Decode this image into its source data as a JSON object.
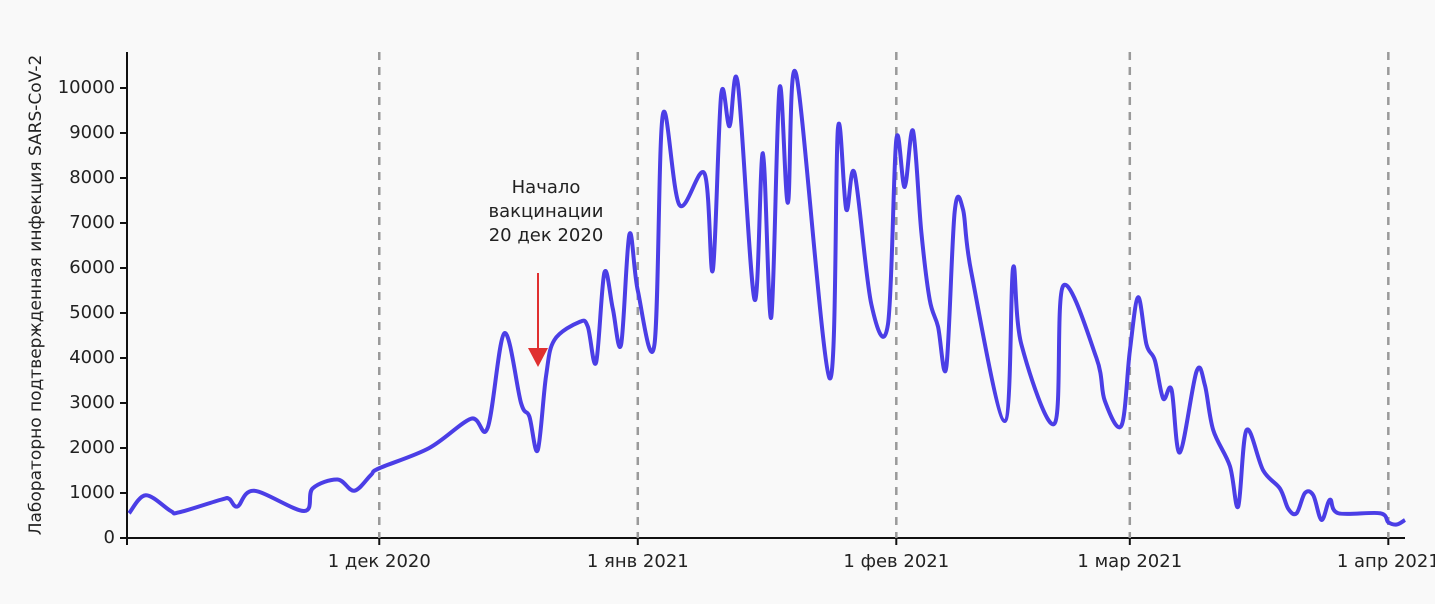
{
  "chart_data": {
    "type": "line",
    "ylabel": "Лабораторно подтвержденная инфекция SARS-CoV-2",
    "annotation": [
      "Начало",
      "вакцинации",
      "20 дек 2020"
    ],
    "xlim": [
      "2020-11-01",
      "2021-04-03"
    ],
    "ylim": [
      0,
      10800
    ],
    "yticks": [
      0,
      1000,
      2000,
      3000,
      4000,
      5000,
      6000,
      7000,
      8000,
      9000,
      10000
    ],
    "xticks": [
      {
        "value": "2020-12-01",
        "label": "1 дек 2020"
      },
      {
        "value": "2021-01-01",
        "label": "1 янв 2021"
      },
      {
        "value": "2021-02-01",
        "label": "1 фев 2021"
      },
      {
        "value": "2021-03-01",
        "label": "1 мар 2021"
      },
      {
        "value": "2021-04-01",
        "label": "1 апр 2021"
      }
    ],
    "grid": "x",
    "series": [
      {
        "color": "#4b3ee6",
        "x": [
          "2020-11-01",
          "2020-11-03",
          "2020-11-06",
          "2020-11-07",
          "2020-11-12",
          "2020-11-13",
          "2020-11-14",
          "2020-11-16",
          "2020-11-22",
          "2020-11-23",
          "2020-11-26",
          "2020-11-28",
          "2020-11-30",
          "2020-12-01",
          "2020-12-07",
          "2020-12-12",
          "2020-12-14",
          "2020-12-16",
          "2020-12-18",
          "2020-12-19",
          "2020-12-20",
          "2020-12-21",
          "2020-12-22",
          "2020-12-25",
          "2020-12-26",
          "2020-12-27",
          "2020-12-28",
          "2020-12-29",
          "2020-12-30",
          "2020-12-31",
          "2021-01-01",
          "2021-01-03",
          "2021-01-04",
          "2021-01-06",
          "2021-01-09",
          "2021-01-10",
          "2021-01-11",
          "2021-01-12",
          "2021-01-13",
          "2021-01-15",
          "2021-01-16",
          "2021-01-17",
          "2021-01-18",
          "2021-01-19",
          "2021-01-20",
          "2021-01-24",
          "2021-01-25",
          "2021-01-26",
          "2021-01-27",
          "2021-01-29",
          "2021-01-31",
          "2021-02-01",
          "2021-02-02",
          "2021-02-03",
          "2021-02-04",
          "2021-02-05",
          "2021-02-06",
          "2021-02-07",
          "2021-02-08",
          "2021-02-09",
          "2021-02-10",
          "2021-02-14",
          "2021-02-15",
          "2021-02-16",
          "2021-02-20",
          "2021-02-21",
          "2021-02-25",
          "2021-02-26",
          "2021-02-28",
          "2021-03-01",
          "2021-03-02",
          "2021-03-03",
          "2021-03-04",
          "2021-03-05",
          "2021-03-06",
          "2021-03-07",
          "2021-03-09",
          "2021-03-10",
          "2021-03-11",
          "2021-03-13",
          "2021-03-14",
          "2021-03-15",
          "2021-03-17",
          "2021-03-19",
          "2021-03-20",
          "2021-03-21",
          "2021-03-22",
          "2021-03-23",
          "2021-03-24",
          "2021-03-25",
          "2021-03-26",
          "2021-03-31",
          "2021-04-01",
          "2021-04-02",
          "2021-04-03"
        ],
        "values": [
          550,
          950,
          600,
          570,
          850,
          870,
          700,
          1050,
          600,
          1100,
          1300,
          1050,
          1400,
          1550,
          2000,
          2650,
          2450,
          4550,
          3000,
          2700,
          1950,
          3600,
          4400,
          4800,
          4700,
          3900,
          5900,
          5100,
          4300,
          6750,
          5500,
          4300,
          9400,
          7400,
          8100,
          5950,
          9850,
          9150,
          10100,
          5300,
          8550,
          4900,
          10000,
          7450,
          10300,
          3550,
          9100,
          7300,
          8100,
          5200,
          4750,
          8850,
          7800,
          9050,
          6800,
          5300,
          4700,
          3800,
          7250,
          7300,
          5900,
          2600,
          6000,
          4300,
          2550,
          5600,
          4000,
          3050,
          2500,
          4150,
          5350,
          4300,
          3950,
          3100,
          3300,
          1900,
          3700,
          3400,
          2400,
          1600,
          700,
          2400,
          1500,
          1100,
          650,
          550,
          1000,
          950,
          400,
          850,
          550,
          550,
          350,
          300,
          400
        ]
      }
    ]
  }
}
